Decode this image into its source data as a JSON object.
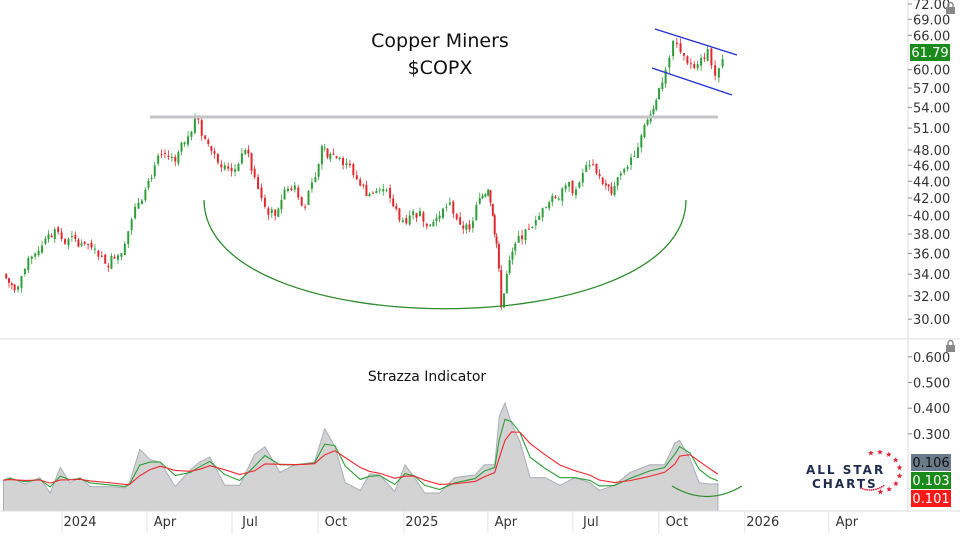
{
  "chart_data": [
    {
      "type": "candlestick",
      "title": "Copper Miners",
      "subtitle": "$COPX",
      "y_scale": "log",
      "ylim": [
        29.5,
        72
      ],
      "y_ticks": [
        "72.00",
        "69.00",
        "66.00",
        "60.00",
        "57.00",
        "54.00",
        "51.00",
        "48.00",
        "46.00",
        "44.00",
        "42.00",
        "40.00",
        "38.00",
        "36.00",
        "34.00",
        "32.00",
        "30.00"
      ],
      "last_price": "61.79",
      "colors": {
        "up": "#2e9e3a",
        "down": "#e0282e",
        "last_price_bg": "#1a8a1a"
      },
      "annotations": {
        "resistance_level": 52.5,
        "channel_color": "#1f2fd6",
        "base_arc_color": "#2e8b2e"
      },
      "series": {
        "dates": [
          "2023-10-11",
          "2023-10-23",
          "2023-11-03",
          "2023-11-14",
          "2023-11-25",
          "2023-12-05",
          "2023-12-16",
          "2023-12-27",
          "2024-01-06",
          "2024-01-17",
          "2024-01-28",
          "2024-02-07",
          "2024-02-18",
          "2024-02-29",
          "2024-03-11",
          "2024-03-21",
          "2024-04-01",
          "2024-04-12",
          "2024-04-22",
          "2024-05-03",
          "2024-05-14",
          "2024-05-24",
          "2024-06-04",
          "2024-06-15",
          "2024-06-26",
          "2024-07-06",
          "2024-07-17",
          "2024-07-28",
          "2024-08-07",
          "2024-08-18",
          "2024-08-29",
          "2024-09-09",
          "2024-09-16",
          "2024-09-25",
          "2024-10-05",
          "2024-10-16",
          "2024-10-27",
          "2024-11-06",
          "2024-11-17",
          "2024-11-28",
          "2024-12-08",
          "2024-12-19",
          "2024-12-30",
          "2025-01-10",
          "2025-01-20",
          "2025-01-31",
          "2025-02-11",
          "2025-02-21",
          "2025-03-04",
          "2025-03-13",
          "2025-03-18",
          "2025-03-22",
          "2025-03-27",
          "2025-04-02",
          "2025-04-11",
          "2025-04-22",
          "2025-05-03",
          "2025-05-14",
          "2025-05-24",
          "2025-06-04",
          "2025-06-15",
          "2025-06-26",
          "2025-07-07",
          "2025-07-17",
          "2025-07-23",
          "2025-08-02",
          "2025-08-13",
          "2025-08-24",
          "2025-09-03",
          "2025-09-12",
          "2025-09-19",
          "2025-09-27",
          "2025-10-05",
          "2025-10-16",
          "2025-10-27",
          "2025-11-03",
          "2025-11-11",
          "2025-11-19"
        ],
        "close": [
          34,
          32.5,
          34.5,
          36,
          37.5,
          38.5,
          37,
          37.5,
          37,
          36.5,
          35,
          35.5,
          37,
          41,
          43,
          46,
          47.5,
          46.5,
          49,
          52.5,
          49.5,
          47.5,
          46,
          45.5,
          48,
          44.5,
          41,
          40,
          43,
          43.5,
          41,
          44.5,
          48.5,
          47.5,
          47,
          46,
          43.5,
          42.5,
          43,
          42,
          39.5,
          40,
          40.5,
          39,
          40,
          41.5,
          39,
          38.5,
          42,
          43,
          40,
          37,
          31,
          34,
          37,
          38.5,
          39.5,
          41,
          42,
          43.5,
          43,
          46,
          45,
          43.5,
          42.5,
          45,
          47,
          50,
          53,
          57,
          60,
          65,
          63,
          61,
          62,
          63.5,
          59,
          61.79
        ]
      }
    },
    {
      "type": "area+line",
      "title": "Strazza Indicator",
      "ylim": [
        0,
        0.6
      ],
      "y_ticks": [
        "0.600",
        "0.500",
        "0.400",
        "0.300"
      ],
      "last_values": {
        "indicator": "0.106",
        "signal_fast": "0.103",
        "signal_slow": "0.101"
      },
      "colors": {
        "indicator": "#c8c8c8",
        "signal_fast": "#2e9e3a",
        "signal_slow": "#f0282e",
        "indicator_label_bg": "#6b7b8c"
      },
      "series": {
        "dates": [
          "2023-10-11",
          "2023-10-18",
          "2023-11-03",
          "2023-11-19",
          "2023-11-30",
          "2023-12-11",
          "2023-12-21",
          "2024-01-01",
          "2024-01-12",
          "2024-02-02",
          "2024-02-18",
          "2024-02-23",
          "2024-03-05",
          "2024-03-16",
          "2024-03-27",
          "2024-04-12",
          "2024-04-28",
          "2024-05-08",
          "2024-05-19",
          "2024-06-04",
          "2024-06-20",
          "2024-07-06",
          "2024-07-17",
          "2024-08-02",
          "2024-08-18",
          "2024-08-29",
          "2024-09-08",
          "2024-09-19",
          "2024-09-30",
          "2024-10-11",
          "2024-10-27",
          "2024-11-06",
          "2024-11-17",
          "2024-12-03",
          "2024-12-14",
          "2024-12-24",
          "2025-01-04",
          "2025-01-20",
          "2025-02-05",
          "2025-02-27",
          "2025-03-09",
          "2025-03-20",
          "2025-03-25",
          "2025-03-31",
          "2025-04-07",
          "2025-04-16",
          "2025-04-27",
          "2025-05-13",
          "2025-05-29",
          "2025-06-14",
          "2025-06-30",
          "2025-07-10",
          "2025-07-26",
          "2025-08-12",
          "2025-09-02",
          "2025-09-18",
          "2025-09-29",
          "2025-10-04",
          "2025-10-15",
          "2025-10-25",
          "2025-11-05",
          "2025-11-14"
        ],
        "indicator": [
          0.12,
          0.13,
          0.105,
          0.13,
          0.07,
          0.17,
          0.11,
          0.13,
          0.095,
          0.095,
          0.09,
          0.11,
          0.24,
          0.2,
          0.19,
          0.095,
          0.16,
          0.19,
          0.21,
          0.1,
          0.1,
          0.22,
          0.25,
          0.15,
          0.18,
          0.185,
          0.19,
          0.32,
          0.25,
          0.11,
          0.08,
          0.145,
          0.14,
          0.075,
          0.18,
          0.13,
          0.07,
          0.07,
          0.13,
          0.14,
          0.18,
          0.18,
          0.37,
          0.42,
          0.34,
          0.27,
          0.13,
          0.13,
          0.1,
          0.13,
          0.11,
          0.08,
          0.1,
          0.15,
          0.18,
          0.18,
          0.265,
          0.275,
          0.205,
          0.11,
          0.105,
          0.106
        ]
      }
    }
  ],
  "x_axis": {
    "ticks": [
      [
        "2024",
        "2024-01-01"
      ],
      [
        "Apr",
        "2024-04-01"
      ],
      [
        "Jul",
        "2024-07-01"
      ],
      [
        "Oct",
        "2024-10-01"
      ],
      [
        "2025",
        "2025-01-01"
      ],
      [
        "Apr",
        "2025-04-01"
      ],
      [
        "Jul",
        "2025-07-01"
      ],
      [
        "Oct",
        "2025-10-01"
      ],
      [
        "2026",
        "2026-01-01"
      ],
      [
        "Apr",
        "2026-04-01"
      ]
    ]
  },
  "logo": {
    "line1": "ALL STAR",
    "line2": "CHARTS",
    "star_color": "#e0283c"
  }
}
